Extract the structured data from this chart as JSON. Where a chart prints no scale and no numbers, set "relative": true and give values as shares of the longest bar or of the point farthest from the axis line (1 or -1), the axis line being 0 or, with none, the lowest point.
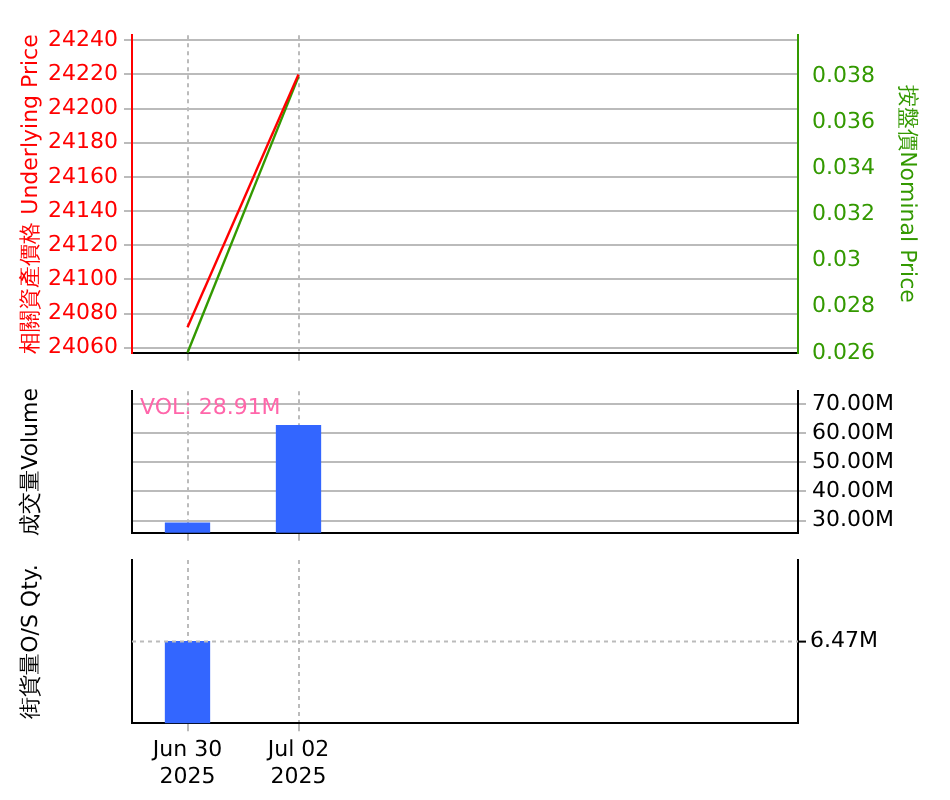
{
  "chart_data": [
    {
      "type": "line",
      "ylabel": "相關資產價格 Underlying Price",
      "y2label": "按盤價Nominal Price",
      "categories": [
        null,
        null,
        null,
        null,
        null,
        null
      ],
      "series": [
        {
          "color": "#ff0000",
          "values": [
            24072,
            24220,
            null,
            null,
            null,
            null
          ]
        },
        {
          "color": "#339900",
          "axis": "y2",
          "values": [
            0.026,
            0.038,
            null,
            null,
            null,
            null
          ]
        }
      ],
      "ylim": [
        24057,
        24243
      ],
      "yticks": [
        24060,
        24080,
        24100,
        24120,
        24140,
        24160,
        24180,
        24200,
        24220,
        24240
      ],
      "y2lim": [
        0.026,
        0.0398
      ],
      "y2ticks": [
        0.026,
        0.028,
        0.03,
        0.032,
        0.034,
        0.036,
        0.038
      ],
      "grid": true,
      "tick_labels": "y"
    },
    {
      "type": "bar",
      "ylabel": "成交量Volume",
      "annotations": [
        "VOL: 28.91M"
      ],
      "categories": [
        null,
        null,
        null,
        null,
        null,
        null
      ],
      "series": [
        {
          "color": "#3366ff",
          "axis": "y2",
          "values": [
            29.1,
            62.6,
            null,
            null,
            null,
            null
          ]
        }
      ],
      "y2lim": [
        25.8,
        74.4
      ],
      "y2ticks": [
        {
          "value": 30,
          "label": "30.00M"
        },
        {
          "value": 40,
          "label": "40.00M"
        },
        {
          "value": 50,
          "label": "50.00M"
        },
        {
          "value": 60,
          "label": "60.00M"
        },
        {
          "value": 70,
          "label": "70.00M"
        }
      ],
      "grid": true,
      "tick_labels": "y"
    },
    {
      "type": "bar",
      "ylabel": "街貨量O/S Qty.",
      "relative": true,
      "categories": [
        "Jun 30\n2025",
        "Jul 02\n2025",
        null,
        null,
        null,
        null
      ],
      "series": [
        {
          "color": "#3366ff",
          "values": [
            1,
            null,
            null,
            null,
            null,
            null
          ]
        }
      ],
      "ref_lines": [
        {
          "axis": "y",
          "value": 1,
          "label": "6.47M"
        }
      ],
      "grid": true,
      "tick_labels": "x"
    }
  ]
}
